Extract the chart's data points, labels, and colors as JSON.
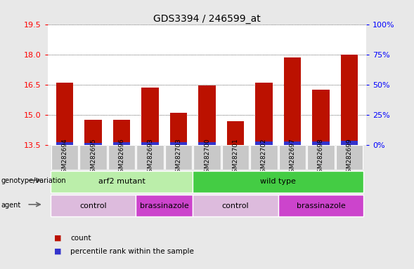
{
  "title": "GDS3394 / 246599_at",
  "samples": [
    "GSM282694",
    "GSM282695",
    "GSM282696",
    "GSM282693",
    "GSM282703",
    "GSM282700",
    "GSM282701",
    "GSM282702",
    "GSM282697",
    "GSM282698",
    "GSM282699"
  ],
  "count_values": [
    16.6,
    14.75,
    14.75,
    16.35,
    15.1,
    16.45,
    14.7,
    16.6,
    17.85,
    16.25,
    18.0
  ],
  "blue_segment_heights": [
    0.15,
    0.13,
    0.16,
    0.14,
    0.14,
    0.14,
    0.0,
    0.18,
    0.18,
    0.18,
    0.22
  ],
  "ymin": 13.5,
  "ymax": 19.5,
  "yticks_left": [
    13.5,
    15.0,
    16.5,
    18.0,
    19.5
  ],
  "yticks_right": [
    0,
    25,
    50,
    75,
    100
  ],
  "bar_color": "#bb1100",
  "blue_color": "#3333cc",
  "bg_color": "#e8e8e8",
  "plot_bg": "#ffffff",
  "genotype_groups": [
    {
      "label": "arf2 mutant",
      "start": 0,
      "end": 5,
      "color": "#bbeeaa"
    },
    {
      "label": "wild type",
      "start": 5,
      "end": 11,
      "color": "#44cc44"
    }
  ],
  "agent_groups": [
    {
      "label": "control",
      "start": 0,
      "end": 3,
      "color": "#ddbbdd"
    },
    {
      "label": "brassinazole",
      "start": 3,
      "end": 5,
      "color": "#cc44cc"
    },
    {
      "label": "control",
      "start": 5,
      "end": 8,
      "color": "#ddbbdd"
    },
    {
      "label": "brassinazole",
      "start": 8,
      "end": 11,
      "color": "#cc44cc"
    }
  ],
  "legend_items": [
    {
      "label": "count",
      "color": "#bb1100"
    },
    {
      "label": "percentile rank within the sample",
      "color": "#3333cc"
    }
  ],
  "bar_width": 0.6,
  "n_samples": 11
}
